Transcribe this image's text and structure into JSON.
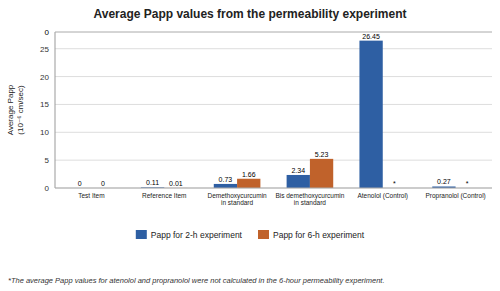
{
  "chart_data": {
    "type": "bar",
    "title": "Average Papp values from the permeability experiment",
    "y_label": "Average Papp\n(10⁻⁶ cm/sec)",
    "categories": [
      "Test Item",
      "Reference Item",
      "Demethoxycurcumin\nin standard",
      "Bis demethoxycurcumin\nin standard",
      "Atenolol (Control)",
      "Propranolol (Control)"
    ],
    "series": [
      {
        "name": "Papp for 2-h experiment",
        "color": "#2E5FA3",
        "values": [
          0,
          0.11,
          0.73,
          2.34,
          26.45,
          0.27
        ]
      },
      {
        "name": "Papp for 6-h experiment",
        "color": "#C0622B",
        "values": [
          0,
          0.01,
          1.66,
          5.23,
          null,
          null
        ],
        "value_labels": [
          "0",
          "0.01",
          "1.66",
          "5.23",
          "*",
          "*"
        ]
      }
    ],
    "ylim": [
      0,
      28
    ],
    "yticks": [
      0,
      5,
      10,
      15,
      20,
      25
    ],
    "grid": true,
    "legend": "bottom",
    "data_labels": true,
    "annotations": [
      "0",
      "*The average Papp values for atenolol and propranolol were not calculated in the 6-hour permeability experiment."
    ]
  }
}
